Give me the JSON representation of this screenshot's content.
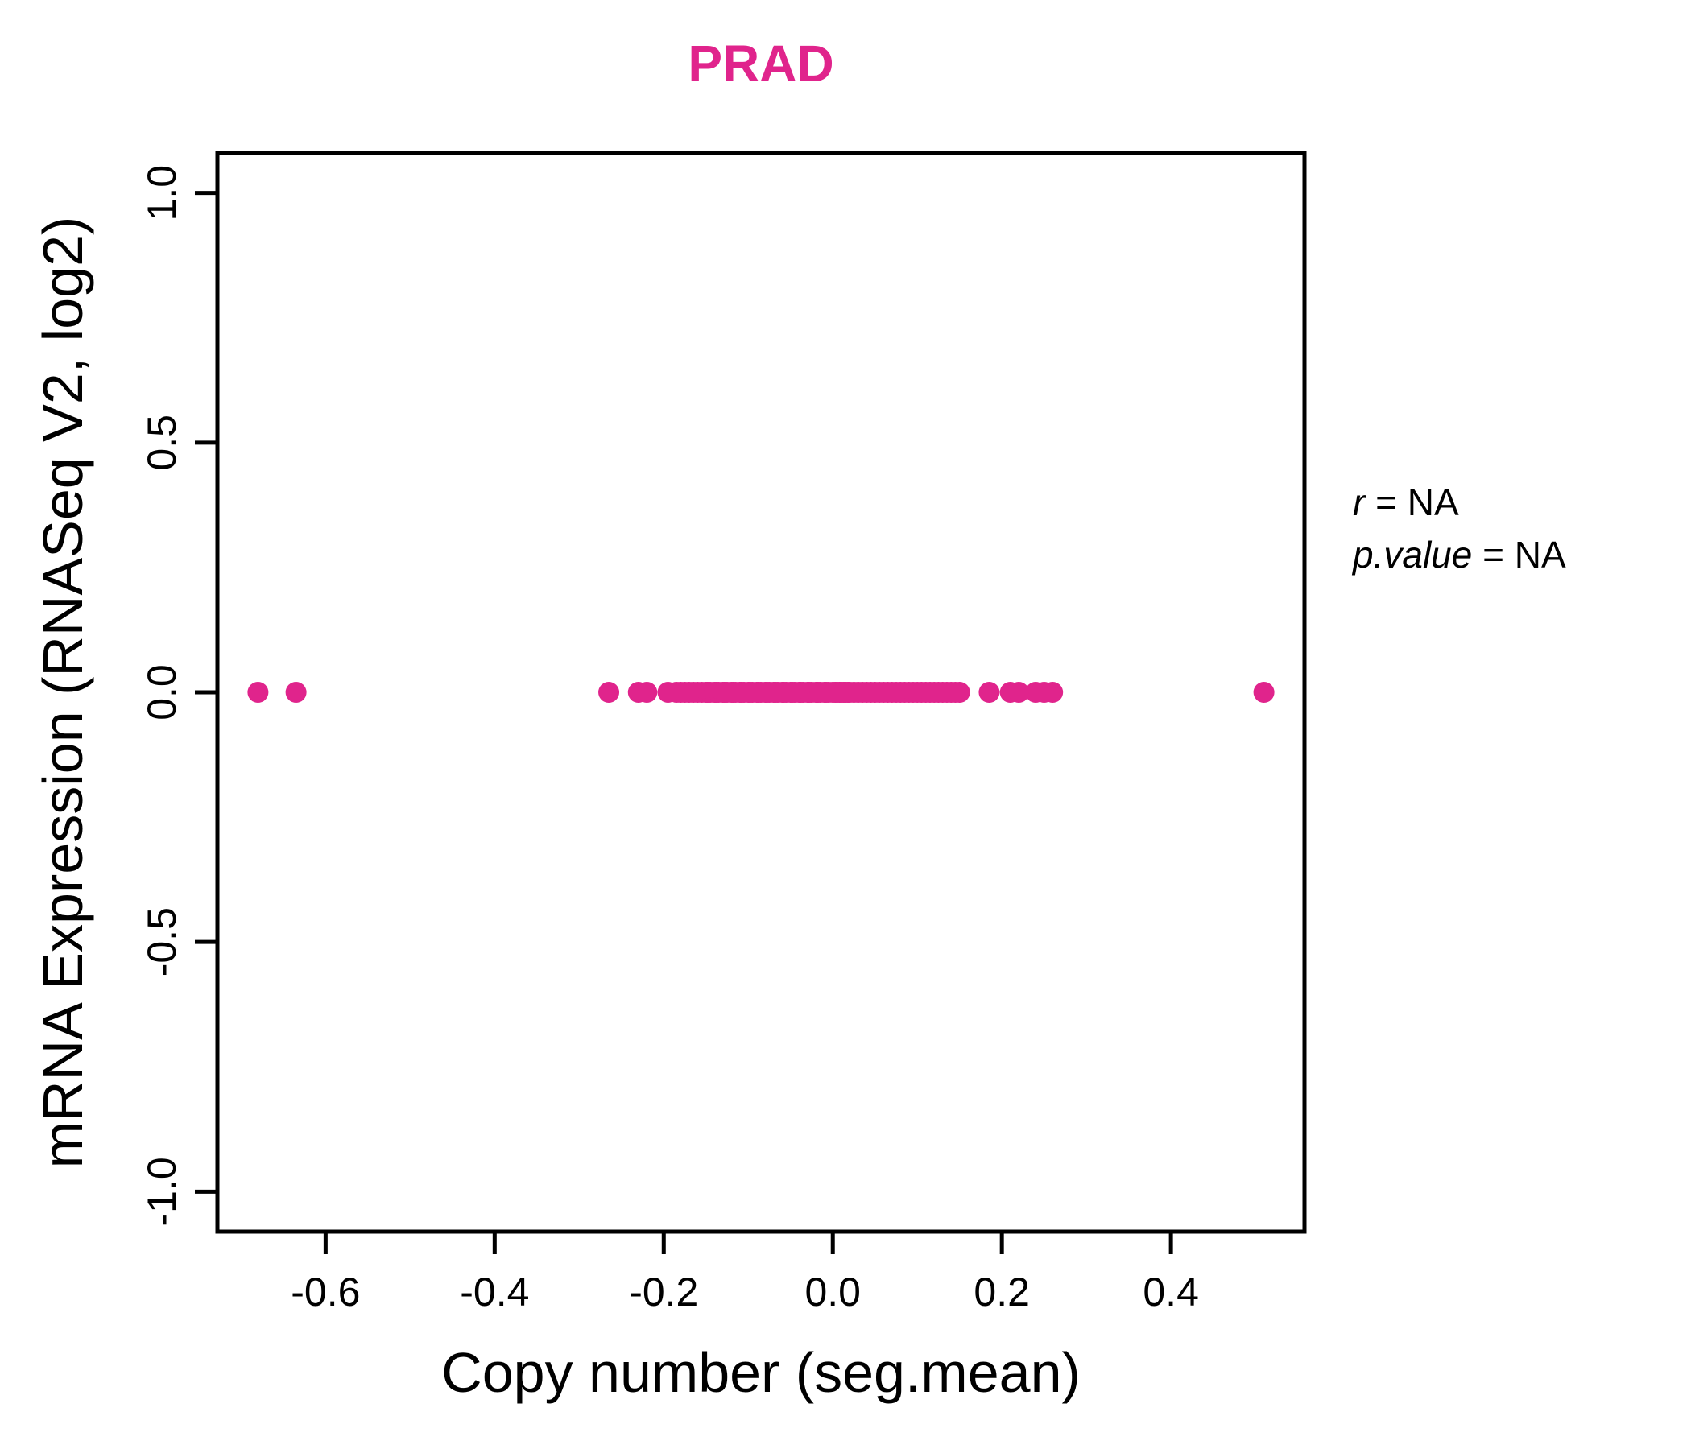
{
  "chart_data": {
    "type": "scatter",
    "title": "PRAD",
    "title_color": "#e0248c",
    "point_color": "#e0248c",
    "axis_color": "#000000",
    "background_color": "#ffffff",
    "xlabel": "Copy number (seg.mean)",
    "ylabel": "mRNA Expression (RNASeq V2, log2)",
    "xlim": [
      -0.728,
      0.558
    ],
    "ylim": [
      -1.08,
      1.08
    ],
    "xticks": [
      -0.6,
      -0.4,
      -0.2,
      0.0,
      0.2,
      0.4
    ],
    "yticks": [
      -1.0,
      -0.5,
      0.0,
      0.5,
      1.0
    ],
    "grid": false,
    "legend": "none",
    "annotation": {
      "lines": [
        {
          "var": "r",
          "rest": " = NA"
        },
        {
          "var": "p.value",
          "rest": " = NA"
        }
      ]
    },
    "series": [
      {
        "name": "samples",
        "y_constant": 0.0,
        "x": [
          -0.68,
          -0.635,
          -0.265,
          -0.23,
          -0.22,
          -0.195,
          -0.185,
          -0.18,
          -0.175,
          -0.17,
          -0.165,
          -0.16,
          -0.155,
          -0.15,
          -0.148,
          -0.145,
          -0.14,
          -0.138,
          -0.135,
          -0.13,
          -0.128,
          -0.125,
          -0.12,
          -0.118,
          -0.115,
          -0.11,
          -0.108,
          -0.105,
          -0.1,
          -0.098,
          -0.095,
          -0.09,
          -0.088,
          -0.085,
          -0.08,
          -0.078,
          -0.075,
          -0.07,
          -0.068,
          -0.065,
          -0.06,
          -0.058,
          -0.055,
          -0.05,
          -0.048,
          -0.045,
          -0.04,
          -0.038,
          -0.035,
          -0.03,
          -0.028,
          -0.025,
          -0.02,
          -0.018,
          -0.015,
          -0.01,
          -0.008,
          -0.005,
          0.0,
          0.003,
          0.005,
          0.008,
          0.01,
          0.013,
          0.015,
          0.018,
          0.02,
          0.025,
          0.03,
          0.035,
          0.04,
          0.045,
          0.05,
          0.055,
          0.06,
          0.065,
          0.07,
          0.075,
          0.08,
          0.085,
          0.09,
          0.095,
          0.1,
          0.105,
          0.11,
          0.115,
          0.12,
          0.125,
          0.13,
          0.135,
          0.14,
          0.145,
          0.15,
          0.185,
          0.21,
          0.22,
          0.24,
          0.25,
          0.26,
          0.51
        ]
      }
    ]
  }
}
